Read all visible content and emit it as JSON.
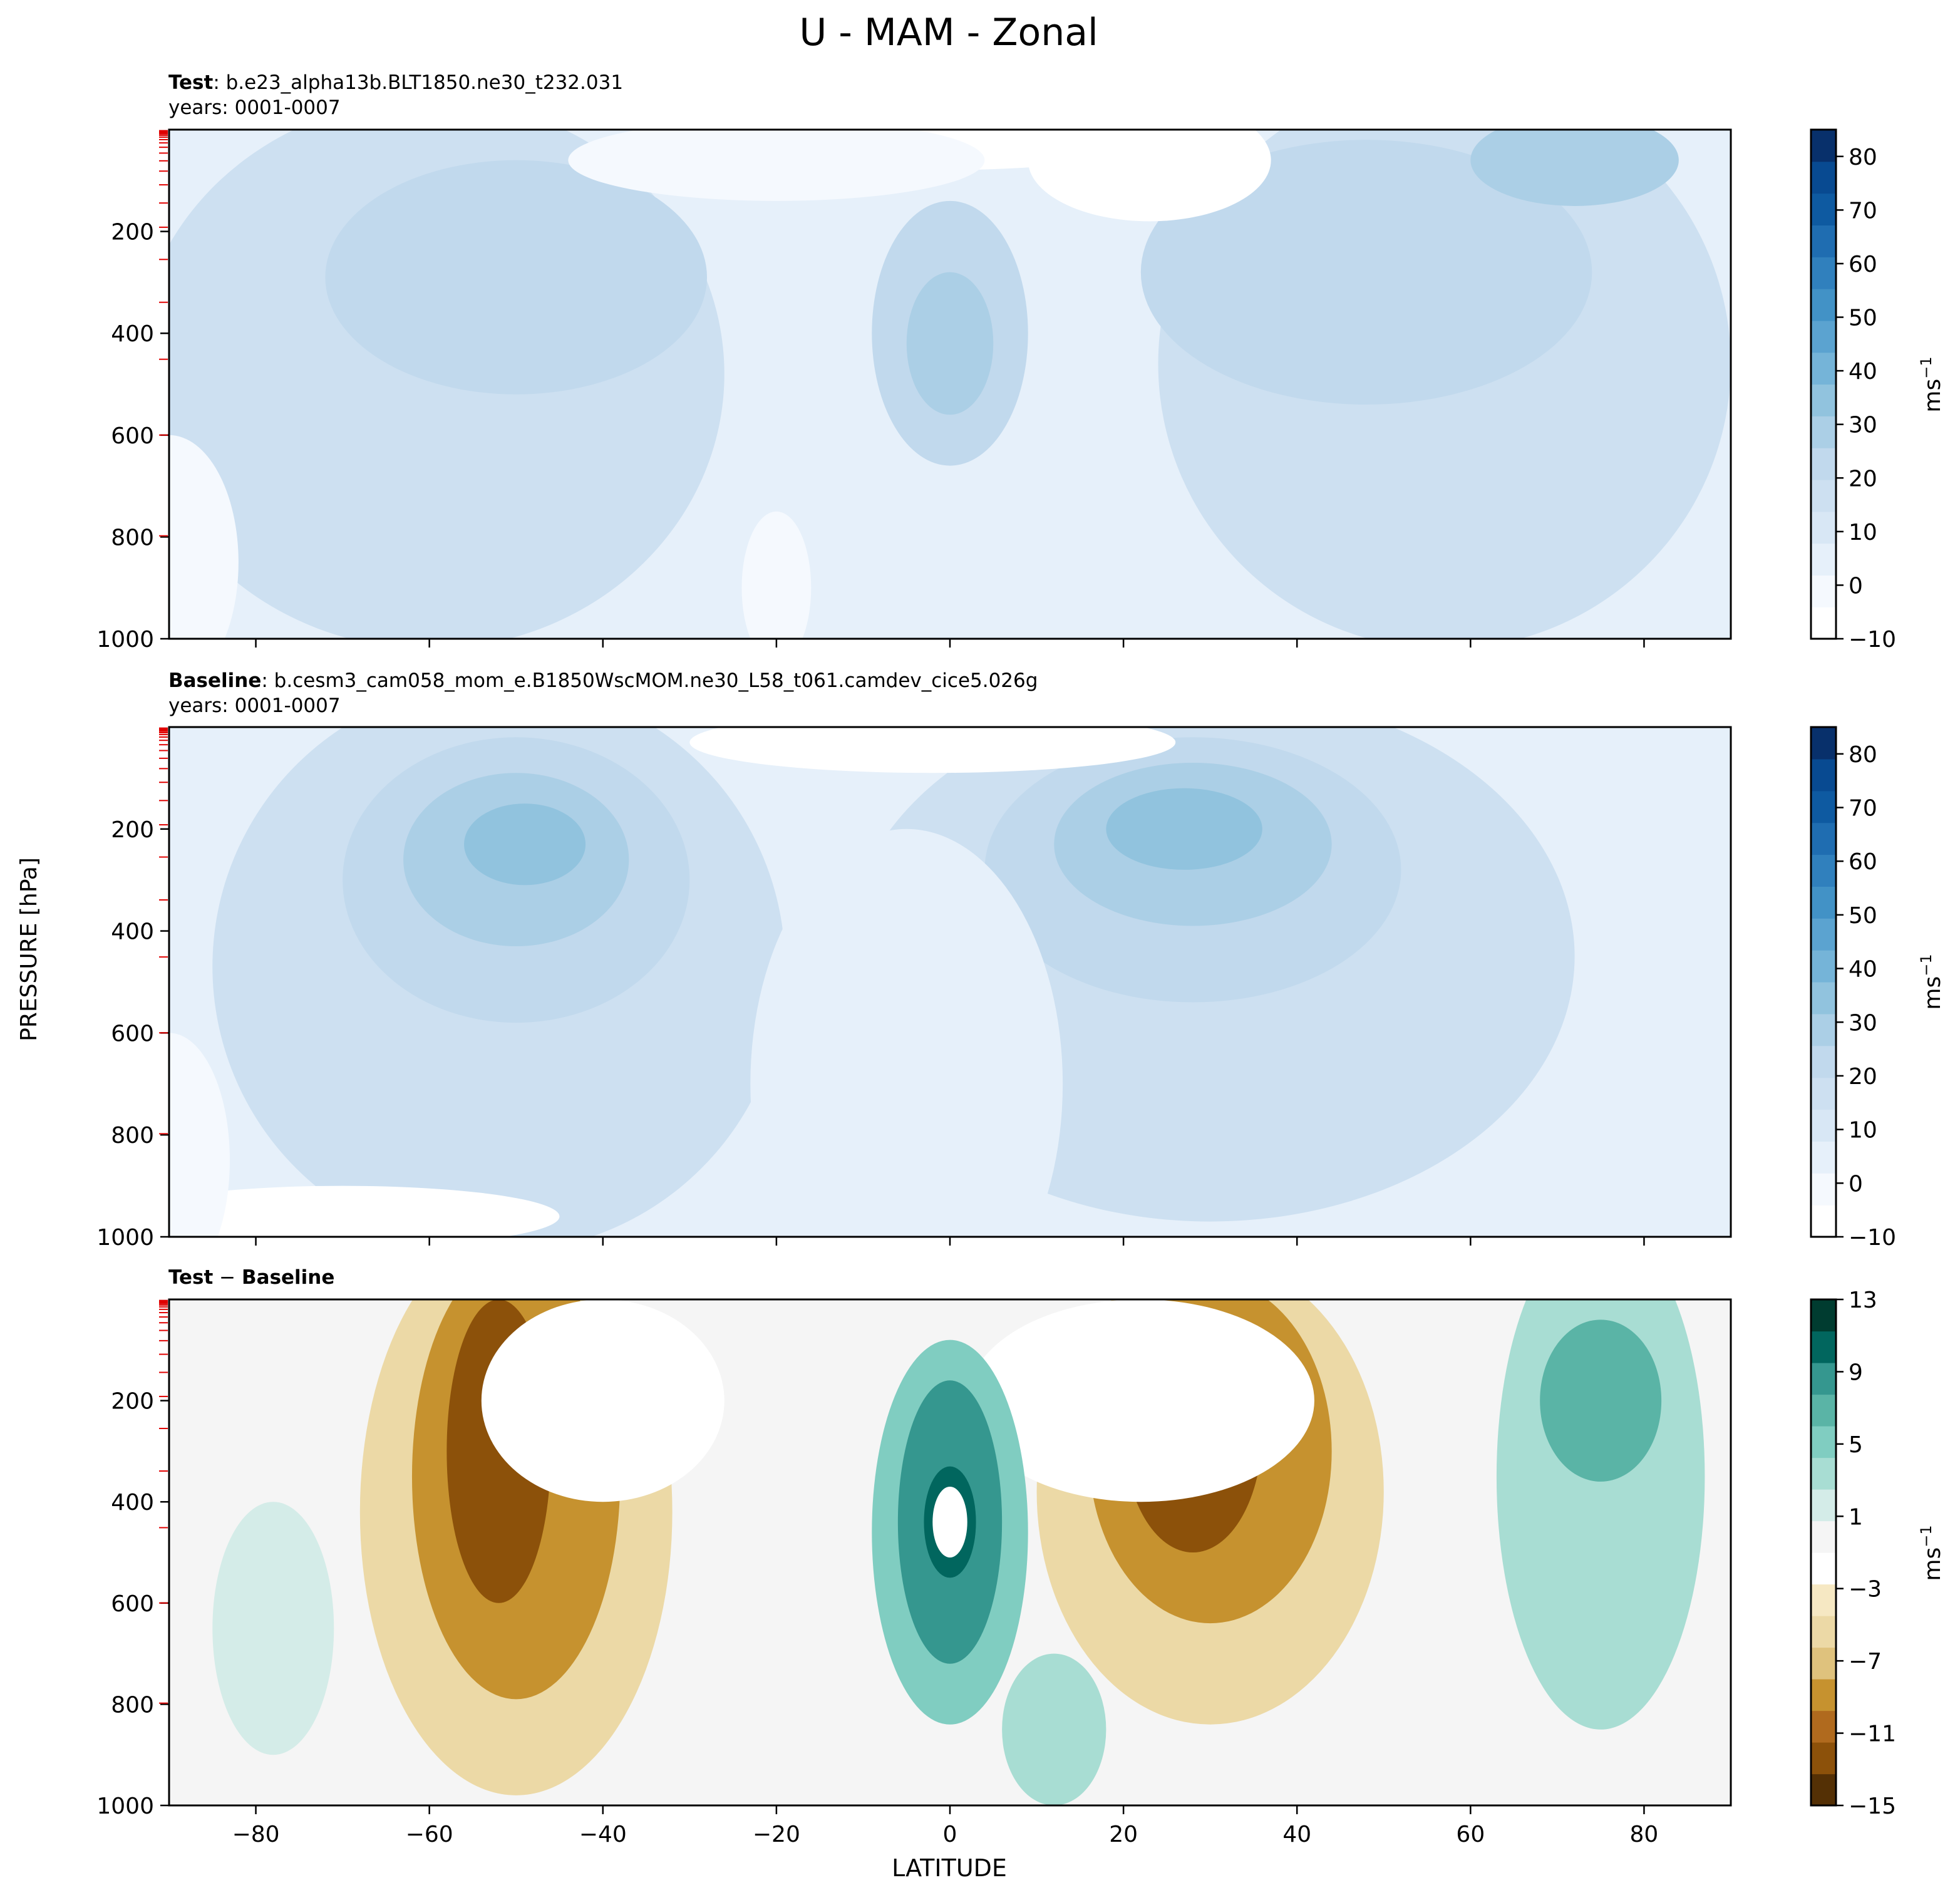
{
  "figure": {
    "title": "U - MAM - Zonal",
    "ylabel": "PRESSURE [hPa]",
    "xlabel": "LATITUDE"
  },
  "chart_data": [
    {
      "type": "heatmap",
      "panel": "test",
      "label_bold": "Test",
      "label_rest": ": b.e23_alpha13b.BLT1850.ne30_t232.031",
      "years": "years: 0001-0007",
      "xlim": [
        -90,
        90
      ],
      "ylim": [
        1000,
        0
      ],
      "yticks": [
        200,
        400,
        600,
        800,
        1000
      ],
      "xticks": [
        -80,
        -60,
        -40,
        -20,
        0,
        20,
        40,
        60,
        80
      ],
      "colorbar": {
        "units": "ms",
        "units_exp": "−1",
        "min": -10,
        "max": 85,
        "ticks": [
          "80",
          "70",
          "60",
          "50",
          "40",
          "30",
          "20",
          "10",
          "0",
          "−10"
        ],
        "tick_values": [
          80,
          70,
          60,
          50,
          40,
          30,
          20,
          10,
          0,
          -10
        ],
        "colors": [
          "#ffffff",
          "#f5f9fe",
          "#e6f0fa",
          "#d8e7f5",
          "#cde0f1",
          "#c1d9ed",
          "#abcfe6",
          "#91c3de",
          "#75b4d8",
          "#5ba3d0",
          "#4292c6",
          "#3080bd",
          "#1f6db1",
          "#0e5aa1",
          "#084a91",
          "#08306b"
        ]
      }
    },
    {
      "type": "heatmap",
      "panel": "baseline",
      "label_bold": "Baseline",
      "label_rest": ": b.cesm3_cam058_mom_e.B1850WscMOM.ne30_L58_t061.camdev_cice5.026g",
      "years": "years: 0001-0007",
      "xlim": [
        -90,
        90
      ],
      "ylim": [
        1000,
        0
      ],
      "yticks": [
        200,
        400,
        600,
        800,
        1000
      ],
      "xticks": [
        -80,
        -60,
        -40,
        -20,
        0,
        20,
        40,
        60,
        80
      ],
      "colorbar": {
        "units": "ms",
        "units_exp": "−1",
        "min": -10,
        "max": 85,
        "ticks": [
          "80",
          "70",
          "60",
          "50",
          "40",
          "30",
          "20",
          "10",
          "0",
          "−10"
        ],
        "tick_values": [
          80,
          70,
          60,
          50,
          40,
          30,
          20,
          10,
          0,
          -10
        ],
        "colors": [
          "#ffffff",
          "#f5f9fe",
          "#e6f0fa",
          "#d8e7f5",
          "#cde0f1",
          "#c1d9ed",
          "#abcfe6",
          "#91c3de",
          "#75b4d8",
          "#5ba3d0",
          "#4292c6",
          "#3080bd",
          "#1f6db1",
          "#0e5aa1",
          "#084a91",
          "#08306b"
        ]
      }
    },
    {
      "type": "heatmap",
      "panel": "diff",
      "label_bold_1": "Test",
      "label_mid": " − ",
      "label_bold_2": "Baseline",
      "xlim": [
        -90,
        90
      ],
      "ylim": [
        1000,
        0
      ],
      "yticks": [
        200,
        400,
        600,
        800,
        1000
      ],
      "xticks": [
        -80,
        -60,
        -40,
        -20,
        0,
        20,
        40,
        60,
        80
      ],
      "xtick_labels": [
        "−80",
        "−60",
        "−40",
        "−20",
        "0",
        "20",
        "40",
        "60",
        "80"
      ],
      "colorbar": {
        "units": "ms",
        "units_exp": "−1",
        "min": -15,
        "max": 13,
        "ticks": [
          "13",
          "9",
          "5",
          "1",
          "−3",
          "−7",
          "−11",
          "−15"
        ],
        "tick_values": [
          13,
          9,
          5,
          1,
          -3,
          -7,
          -11,
          -15
        ],
        "colors": [
          "#543005",
          "#8c510a",
          "#b06a1e",
          "#c6922f",
          "#dfc27d",
          "#ecd9a6",
          "#f6e8c3",
          "#ffffff",
          "#f5f5f5",
          "#d4ece8",
          "#a8ddd3",
          "#80cdc1",
          "#5ab4a6",
          "#35978f",
          "#01665e",
          "#003c30"
        ]
      }
    }
  ]
}
